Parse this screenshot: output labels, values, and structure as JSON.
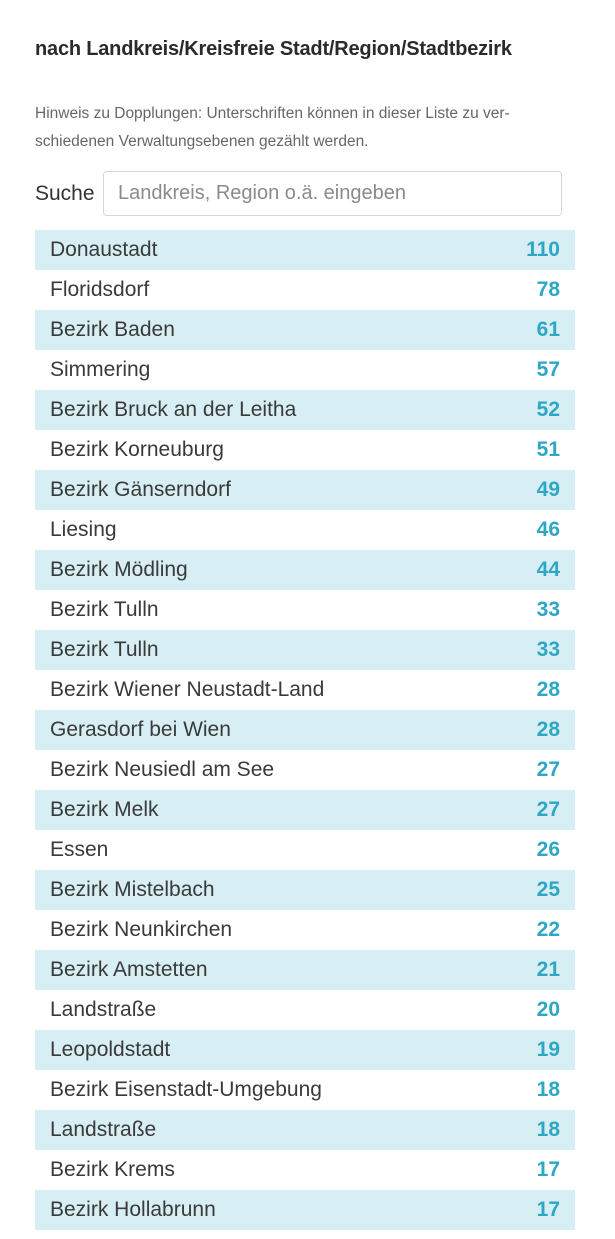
{
  "section": {
    "title": "nach Landkreis/Kreisfreie Stadt/Region/Stadtbezirk",
    "note_line1": "Hinweis zu Dopplungen: Unterschriften können in dieser Liste zu ver-",
    "note_line2": "schiedenen Verwaltungsebenen gezählt werden."
  },
  "search": {
    "label": "Suche",
    "placeholder": "Landkreis, Region o.ä. eingeben",
    "value": ""
  },
  "colors": {
    "row_highlight": "#d7eef4",
    "count_accent": "#2ea7c4"
  },
  "regions": [
    {
      "name": "Donaustadt",
      "count": "110"
    },
    {
      "name": "Floridsdorf",
      "count": "78"
    },
    {
      "name": "Bezirk Baden",
      "count": "61"
    },
    {
      "name": "Simmering",
      "count": "57"
    },
    {
      "name": "Bezirk Bruck an der Leitha",
      "count": "52"
    },
    {
      "name": "Bezirk Korneuburg",
      "count": "51"
    },
    {
      "name": "Bezirk Gänserndorf",
      "count": "49"
    },
    {
      "name": "Liesing",
      "count": "46"
    },
    {
      "name": "Bezirk Mödling",
      "count": "44"
    },
    {
      "name": "Bezirk Tulln",
      "count": "33"
    },
    {
      "name": "Bezirk Tulln",
      "count": "33"
    },
    {
      "name": "Bezirk Wiener Neustadt-Land",
      "count": "28"
    },
    {
      "name": "Gerasdorf bei Wien",
      "count": "28"
    },
    {
      "name": "Bezirk Neusiedl am See",
      "count": "27"
    },
    {
      "name": "Bezirk Melk",
      "count": "27"
    },
    {
      "name": "Essen",
      "count": "26"
    },
    {
      "name": "Bezirk Mistelbach",
      "count": "25"
    },
    {
      "name": "Bezirk Neunkirchen",
      "count": "22"
    },
    {
      "name": "Bezirk Amstetten",
      "count": "21"
    },
    {
      "name": "Landstraße",
      "count": "20"
    },
    {
      "name": "Leopoldstadt",
      "count": "19"
    },
    {
      "name": "Bezirk Eisenstadt-Umgebung",
      "count": "18"
    },
    {
      "name": "Landstraße",
      "count": "18"
    },
    {
      "name": "Bezirk Krems",
      "count": "17"
    },
    {
      "name": "Bezirk Hollabrunn",
      "count": "17"
    }
  ]
}
